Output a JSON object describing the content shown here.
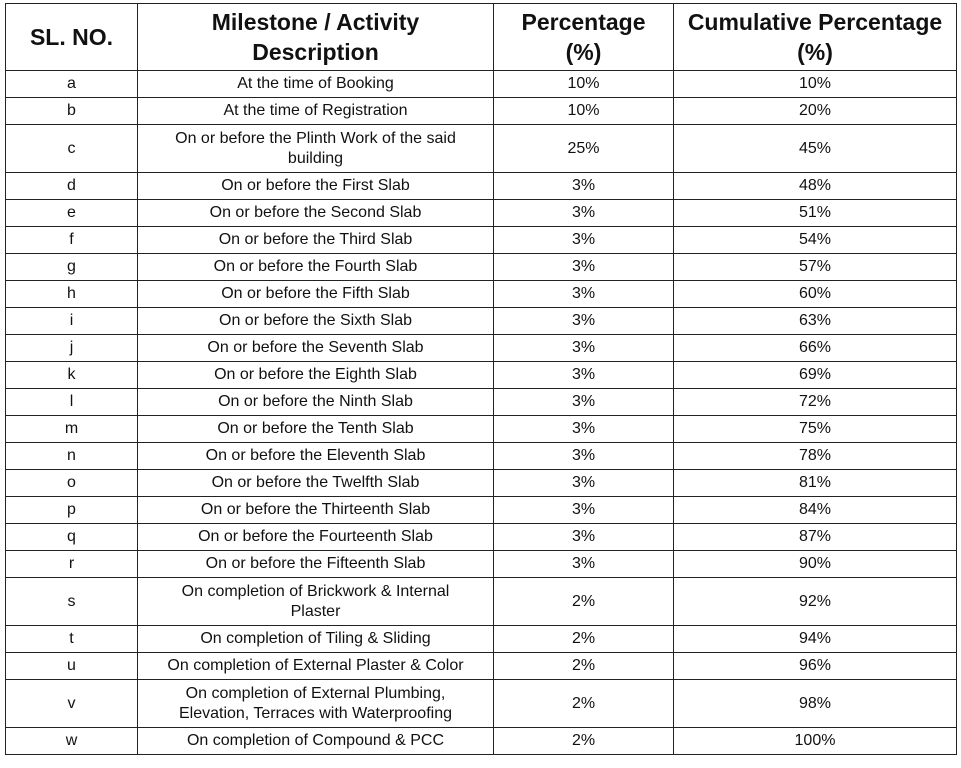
{
  "table": {
    "header": [
      "SL. NO.",
      "Milestone / Activity\nDescription",
      "Percentage\n(%)",
      "Cumulative Percentage\n(%)"
    ],
    "rows": [
      [
        "a",
        "At the time of Booking",
        "10%",
        "10%"
      ],
      [
        "b",
        "At the time of Registration",
        "10%",
        "20%"
      ],
      [
        "c",
        "On or before the Plinth Work of the said\nbuilding",
        "25%",
        "45%"
      ],
      [
        "d",
        "On or before the First Slab",
        "3%",
        "48%"
      ],
      [
        "e",
        "On or before the Second Slab",
        "3%",
        "51%"
      ],
      [
        "f",
        "On or before the Third Slab",
        "3%",
        "54%"
      ],
      [
        "g",
        "On or before the Fourth Slab",
        "3%",
        "57%"
      ],
      [
        "h",
        "On or before the Fifth Slab",
        "3%",
        "60%"
      ],
      [
        "i",
        "On or before the Sixth Slab",
        "3%",
        "63%"
      ],
      [
        "j",
        "On or before the Seventh Slab",
        "3%",
        "66%"
      ],
      [
        "k",
        "On or before the Eighth Slab",
        "3%",
        "69%"
      ],
      [
        "l",
        "On or before the Ninth Slab",
        "3%",
        "72%"
      ],
      [
        "m",
        "On or before the Tenth Slab",
        "3%",
        "75%"
      ],
      [
        "n",
        "On or before the Eleventh Slab",
        "3%",
        "78%"
      ],
      [
        "o",
        "On or before the Twelfth Slab",
        "3%",
        "81%"
      ],
      [
        "p",
        "On or before the Thirteenth Slab",
        "3%",
        "84%"
      ],
      [
        "q",
        "On or before the Fourteenth Slab",
        "3%",
        "87%"
      ],
      [
        "r",
        "On or before the Fifteenth Slab",
        "3%",
        "90%"
      ],
      [
        "s",
        "On completion of Brickwork & Internal\nPlaster",
        "2%",
        "92%"
      ],
      [
        "t",
        "On completion of Tiling & Sliding",
        "2%",
        "94%"
      ],
      [
        "u",
        "On completion of External Plaster & Color",
        "2%",
        "96%"
      ],
      [
        "v",
        "On completion of External Plumbing,\nElevation, Terraces with Waterproofing",
        "2%",
        "98%"
      ],
      [
        "w",
        "On completion of Compound & PCC",
        "2%",
        "100%"
      ]
    ]
  }
}
